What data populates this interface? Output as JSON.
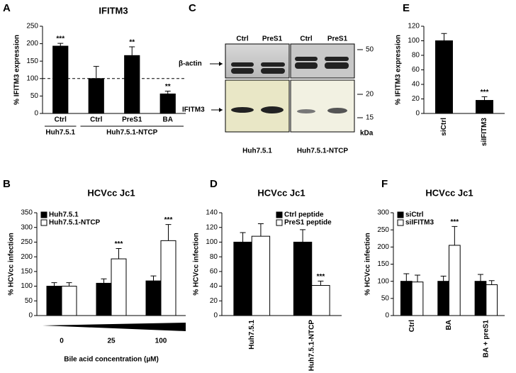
{
  "chart_data": [
    {
      "type": "bar",
      "panel": "A",
      "title": "IFITM3",
      "ylabel": "% IFITM3 expression",
      "categories": [
        "Ctrl",
        "Ctrl",
        "PreS1",
        "BA"
      ],
      "groups": [
        {
          "label": "Huh7.5.1",
          "size": 1
        },
        {
          "label": "Huh7.5.1-NTCP",
          "size": 3
        }
      ],
      "series": [
        {
          "color": "#000000",
          "values": [
            193,
            100,
            166,
            56
          ],
          "errors": [
            8,
            35,
            25,
            8
          ],
          "significance": [
            "***",
            null,
            "**",
            "**"
          ]
        }
      ],
      "reference_line": 100,
      "ylim": [
        0,
        250
      ],
      "yticks": [
        0,
        50,
        100,
        150,
        200,
        250
      ]
    },
    {
      "type": "bar",
      "panel": "B",
      "title": "HCVcc Jc1",
      "ylabel": "% HCVcc infection",
      "xlabel": "Bile acid concentration (µM)",
      "categories": [
        "0",
        "25",
        "100"
      ],
      "series": [
        {
          "name": "Huh7.5.1",
          "color": "#000000",
          "values": [
            100,
            110,
            118
          ],
          "errors": [
            12,
            15,
            17
          ],
          "significance": [
            null,
            null,
            null
          ]
        },
        {
          "name": "Huh7.5.1-NTCP",
          "color": "#ffffff",
          "values": [
            100,
            193,
            255
          ],
          "errors": [
            12,
            35,
            55
          ],
          "significance": [
            null,
            "***",
            "***"
          ]
        }
      ],
      "legend": "upper left",
      "ylim": [
        0,
        350
      ],
      "yticks": [
        0,
        50,
        100,
        150,
        200,
        250,
        300,
        350
      ]
    },
    {
      "type": "bar",
      "panel": "D",
      "title": "HCVcc Jc1",
      "ylabel": "% HCVcc infection",
      "categories": [
        "Huh7.5.1",
        "Huh7.5.1-NTCP"
      ],
      "series": [
        {
          "name": "Ctrl peptide",
          "color": "#000000",
          "values": [
            100,
            100
          ],
          "errors": [
            13,
            17
          ],
          "significance": [
            null,
            null
          ]
        },
        {
          "name": "PreS1 peptide",
          "color": "#ffffff",
          "values": [
            108,
            41
          ],
          "errors": [
            17,
            6
          ],
          "significance": [
            null,
            "***"
          ]
        }
      ],
      "legend": "upper right",
      "ylim": [
        0,
        140
      ],
      "yticks": [
        0,
        20,
        40,
        60,
        80,
        100,
        120,
        140
      ]
    },
    {
      "type": "bar",
      "panel": "E",
      "ylabel": "% IFITM3 expression",
      "categories": [
        "siCtrl",
        "siIFITM3"
      ],
      "series": [
        {
          "color": "#000000",
          "values": [
            100,
            18
          ],
          "errors": [
            10,
            5
          ],
          "significance": [
            null,
            "***"
          ]
        }
      ],
      "ylim": [
        0,
        120
      ],
      "yticks": [
        0,
        20,
        40,
        60,
        80,
        100,
        120
      ]
    },
    {
      "type": "bar",
      "panel": "F",
      "title": "HCVcc Jc1",
      "ylabel": "% HCVcc infection",
      "categories": [
        "Ctrl",
        "BA",
        "BA + preS1"
      ],
      "series": [
        {
          "name": "siCtrl",
          "color": "#000000",
          "values": [
            100,
            100,
            100
          ],
          "errors": [
            22,
            15,
            20
          ],
          "significance": [
            null,
            null,
            null
          ]
        },
        {
          "name": "siIFITM3",
          "color": "#ffffff",
          "values": [
            98,
            205,
            90
          ],
          "errors": [
            20,
            55,
            12
          ],
          "significance": [
            null,
            "***",
            null
          ]
        }
      ],
      "legend": "upper left",
      "ylim": [
        0,
        300
      ],
      "yticks": [
        0,
        50,
        100,
        150,
        200,
        250,
        300
      ]
    }
  ],
  "blot": {
    "panel": "C",
    "lanes": [
      "Ctrl",
      "PreS1",
      "Ctrl",
      "PreS1"
    ],
    "proteins": [
      "β-actin",
      "IFITM3"
    ],
    "markers": [
      "50",
      "20",
      "15"
    ],
    "unit": "kDa",
    "cells": [
      "Huh7.5.1",
      "Huh7.5.1-NTCP"
    ]
  }
}
